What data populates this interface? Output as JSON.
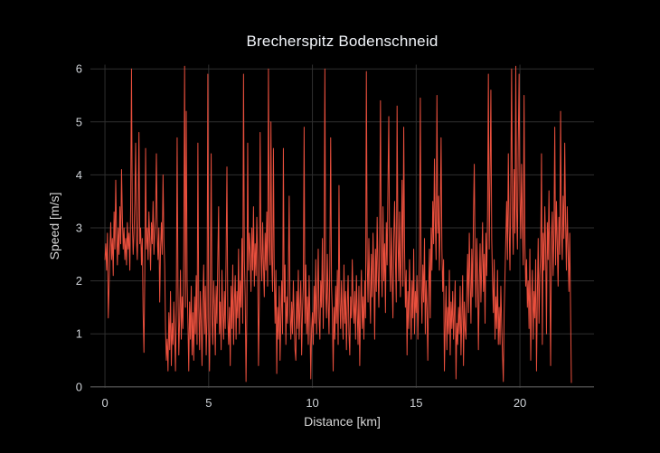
{
  "title": "Brecherspitz Bodenschneid",
  "colors": {
    "background": "#000000",
    "trace": "#e94f3d",
    "grid": "#2f2f2f",
    "zeroline": "#4d4d4d",
    "tick_text": "#cfd3d8",
    "title_text": "#f2f5fa"
  },
  "chart_data": {
    "type": "line",
    "title": "Brecherspitz Bodenschneid",
    "xlabel": "Distance [km]",
    "ylabel": "Speed [m/s]",
    "x_ticks": [
      0,
      5,
      10,
      15,
      20
    ],
    "y_ticks": [
      0,
      1,
      2,
      3,
      4,
      5,
      6
    ],
    "xlim": [
      -0.7,
      23.57
    ],
    "ylim": [
      -0.02,
      6.08
    ],
    "grid": true,
    "legend": false,
    "series": [
      {
        "name": "speed",
        "x_start": 0,
        "x_step": 0.04,
        "y": [
          2.4,
          2.7,
          2.2,
          2.9,
          1.3,
          1.9,
          2.6,
          3.1,
          2.4,
          2.8,
          2.1,
          3.3,
          2.6,
          3.9,
          2.9,
          2.3,
          3.0,
          2.5,
          3.4,
          2.7,
          4.1,
          3.2,
          2.6,
          3.0,
          2.4,
          2.8,
          2.3,
          3.1,
          2.6,
          2.9,
          2.2,
          3.4,
          6.0,
          3.1,
          2.5,
          2.9,
          3.5,
          4.6,
          2.8,
          2.4,
          3.2,
          4.8,
          2.7,
          3.0,
          2.3,
          2.8,
          1.4,
          0.65,
          2.1,
          4.5,
          2.6,
          3.0,
          2.4,
          3.3,
          2.8,
          2.2,
          3.1,
          2.7,
          3.5,
          2.5,
          2.9,
          3.2,
          4.4,
          2.9,
          2.4,
          3.0,
          1.6,
          2.6,
          3.1,
          2.5,
          4.0,
          2.8,
          2.3,
          1.1,
          0.5,
          0.9,
          0.3,
          1.4,
          0.7,
          1.8,
          0.4,
          1.2,
          0.8,
          1.6,
          1.0,
          0.3,
          1.5,
          4.7,
          1.9,
          0.6,
          1.3,
          2.2,
          0.9,
          1.7,
          1.1,
          2.6,
          6.05,
          1.5,
          5.2,
          2.0,
          1.2,
          0.3,
          1.6,
          0.9,
          1.9,
          0.6,
          1.4,
          0.5,
          1.7,
          1.0,
          2.1,
          0.8,
          4.6,
          1.5,
          0.7,
          1.8,
          1.2,
          0.4,
          1.6,
          2.3,
          1.0,
          1.9,
          0.6,
          1.3,
          5.9,
          1.1,
          0.3,
          1.8,
          4.4,
          1.3,
          0.8,
          2.0,
          1.5,
          0.6,
          1.9,
          1.2,
          2.4,
          3.4,
          1.0,
          1.6,
          0.7,
          2.2,
          1.4,
          0.9,
          1.8,
          1.1,
          2.5,
          4.15,
          1.3,
          0.8,
          1.5,
          0.4,
          1.9,
          1.1,
          2.3,
          0.8,
          1.6,
          2.1,
          0.9,
          1.8,
          1.3,
          2.6,
          1.0,
          2.0,
          1.5,
          2.8,
          1.2,
          5.9,
          2.4,
          1.7,
          0.1,
          1.4,
          4.6,
          2.2,
          2.9,
          2.5,
          1.8,
          3.0,
          2.2,
          3.4,
          1.9,
          2.7,
          2.1,
          3.2,
          2.4,
          0.4,
          1.6,
          4.8,
          2.6,
          2.0,
          3.1,
          2.3,
          1.7,
          2.9,
          2.2,
          3.3,
          1.9,
          6.0,
          2.8,
          2.3,
          5.0,
          2.4,
          1.8,
          4.5,
          2.1,
          1.2,
          2.2,
          0.25,
          1.5,
          0.9,
          1.9,
          0.5,
          1.3,
          2.0,
          1.0,
          4.5,
          1.6,
          2.3,
          0.8,
          1.7,
          1.2,
          2.1,
          3.6,
          1.4,
          0.9,
          1.6,
          1.0,
          2.0,
          1.3,
          0.7,
          0.5,
          1.8,
          1.1,
          2.2,
          0.9,
          1.5,
          2.0,
          0.6,
          1.4,
          1.9,
          4.9,
          1.2,
          2.3,
          1.0,
          1.7,
          0.8,
          2.1,
          1.3,
          0.15,
          1.1,
          1.4,
          0.8,
          1.9,
          1.2,
          2.4,
          1.0,
          1.7,
          2.6,
          1.3,
          0.9,
          2.0,
          1.5,
          2.8,
          1.1,
          2.2,
          6.0,
          1.8,
          1.3,
          2.5,
          1.6,
          1.0,
          2.3,
          4.7,
          1.9,
          1.4,
          0.3,
          1.5,
          0.9,
          1.9,
          1.2,
          2.2,
          0.8,
          3.8,
          1.6,
          1.1,
          2.0,
          1.4,
          0.9,
          2.3,
          1.2,
          1.8,
          0.7,
          1.5,
          2.1,
          1.0,
          0.6,
          1.7,
          1.3,
          2.4,
          1.6,
          1.2,
          1.8,
          0.9,
          2.1,
          1.4,
          0.8,
          1.9,
          0.4,
          1.5,
          2.2,
          1.1,
          1.7,
          0.9,
          2.0,
          1.3,
          5.95,
          2.4,
          1.6,
          2.8,
          1.9,
          1.2,
          2.5,
          1.7,
          2.9,
          2.1,
          0.9,
          2.6,
          1.8,
          3.2,
          2.2,
          1.5,
          2.9,
          5.4,
          2.4,
          1.7,
          3.4,
          2.0,
          2.7,
          1.4,
          3.1,
          2.3,
          3.8,
          5.1,
          2.5,
          1.8,
          3.0,
          2.1,
          1.3,
          2.8,
          3.5,
          2.4,
          1.6,
          5.3,
          2.8,
          2.0,
          3.3,
          1.7,
          2.5,
          3.9,
          1.9,
          4.9,
          2.6,
          1.5,
          2.2,
          0.6,
          1.8,
          1.1,
          2.4,
          1.6,
          0.9,
          2.0,
          1.3,
          2.6,
          1.0,
          1.8,
          1.4,
          2.1,
          0.9,
          1.7,
          2.5,
          5.45,
          1.9,
          1.2,
          2.3,
          1.6,
          2.8,
          1.0,
          2.0,
          1.5,
          0.5,
          1.8,
          2.6,
          1.3,
          3.0,
          2.2,
          3.5,
          2.7,
          4.3,
          3.1,
          2.4,
          5.5,
          2.9,
          3.6,
          2.2,
          3.2,
          4.7,
          2.6,
          1.8,
          2.4,
          0.3,
          1.2,
          1.9,
          0.7,
          1.5,
          1.0,
          2.2,
          0.6,
          1.6,
          1.1,
          1.8,
          0.9,
          1.4,
          2.0,
          0.15,
          1.2,
          0.8,
          1.5,
          1.0,
          1.9,
          0.6,
          1.3,
          2.1,
          0.4,
          1.6,
          1.1,
          0.9,
          1.8,
          2.5,
          1.4,
          2.9,
          2.0,
          1.2,
          2.6,
          1.7,
          3.2,
          4.2,
          2.4,
          1.5,
          2.8,
          2.1,
          0.7,
          1.9,
          2.7,
          1.6,
          2.3,
          3.1,
          1.8,
          2.5,
          1.2,
          2.9,
          2.1,
          3.3,
          5.9,
          2.6,
          3.9,
          5.6,
          2.8,
          2.0,
          1.4,
          2.4,
          0.9,
          1.7,
          1.1,
          2.2,
          0.8,
          1.5,
          0.8,
          1.9,
          1.2,
          0.6,
          0.1,
          1.4,
          2.1,
          2.8,
          3.5,
          2.4,
          4.4,
          3.0,
          2.2,
          3.8,
          6.0,
          3.2,
          2.5,
          4.1,
          2.9,
          6.05,
          3.4,
          2.6,
          4.6,
          5.9,
          3.6,
          2.8,
          4.2,
          3.1,
          2.3,
          5.5,
          2.7,
          1.9,
          2.4,
          1.5,
          2.0,
          1.1,
          2.6,
          0.5,
          1.6,
          2.2,
          0.9,
          1.8,
          1.3,
          2.4,
          0.3,
          1.7,
          2.8,
          1.2,
          2.1,
          2.5,
          4.4,
          0.8,
          2.9,
          2.2,
          3.4,
          2.6,
          1.0,
          3.1,
          2.4,
          3.7,
          2.0,
          0.4,
          2.8,
          3.3,
          2.1,
          2.9,
          4.9,
          2.3,
          3.5,
          2.7,
          1.9,
          3.2,
          2.5,
          5.2,
          3.0,
          2.4,
          3.6,
          2.8,
          4.6,
          3.1,
          2.2,
          3.4,
          2.6,
          1.8,
          2.9,
          1.5,
          0.08
        ]
      }
    ]
  }
}
